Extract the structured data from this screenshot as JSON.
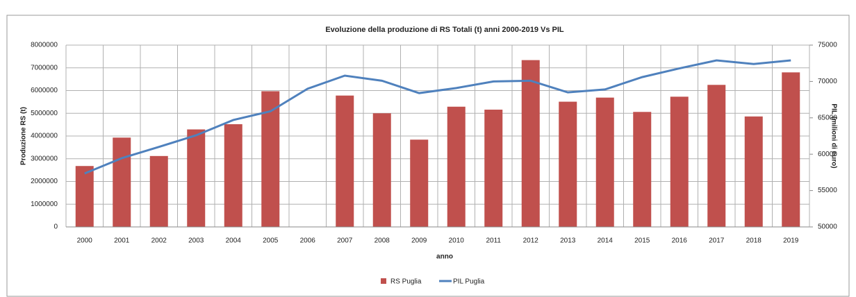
{
  "chart_data": {
    "type": "bar_line",
    "title": "Evoluzione della produzione di RS Totali  (t) anni 2000-2019 Vs PIL",
    "x_label": "anno",
    "y_label": "Produzione RS (t)",
    "y2_label": "PIL (milioni di euro)",
    "categories": [
      "2000",
      "2001",
      "2002",
      "2003",
      "2004",
      "2005",
      "2006",
      "2007",
      "2008",
      "2009",
      "2010",
      "2011",
      "2012",
      "2013",
      "2014",
      "2015",
      "2016",
      "2017",
      "2018",
      "2019"
    ],
    "series": [
      {
        "name": "RS Puglia",
        "type": "bar",
        "color": "#c0504d",
        "values": [
          2680000,
          3930000,
          3120000,
          4290000,
          4520000,
          5970000,
          null,
          5780000,
          5000000,
          3840000,
          5290000,
          5160000,
          7340000,
          5510000,
          5690000,
          5060000,
          5730000,
          6250000,
          4860000,
          6800000
        ]
      },
      {
        "name": "PIL Puglia",
        "type": "line",
        "axis": "y2",
        "color": "#4f81bd",
        "values": [
          57350,
          59450,
          61000,
          62600,
          64700,
          65900,
          69000,
          70800,
          70100,
          68400,
          69100,
          70000,
          70100,
          68500,
          68900,
          70600,
          71800,
          72900,
          72400,
          72900
        ]
      }
    ],
    "ylim": [
      0,
      8000000
    ],
    "yticks": [
      0,
      1000000,
      2000000,
      3000000,
      4000000,
      5000000,
      6000000,
      7000000,
      8000000
    ],
    "y2lim": [
      50000,
      75000
    ],
    "y2ticks": [
      50000,
      55000,
      60000,
      65000,
      70000,
      75000
    ],
    "grid": true,
    "legend": "bottom"
  }
}
